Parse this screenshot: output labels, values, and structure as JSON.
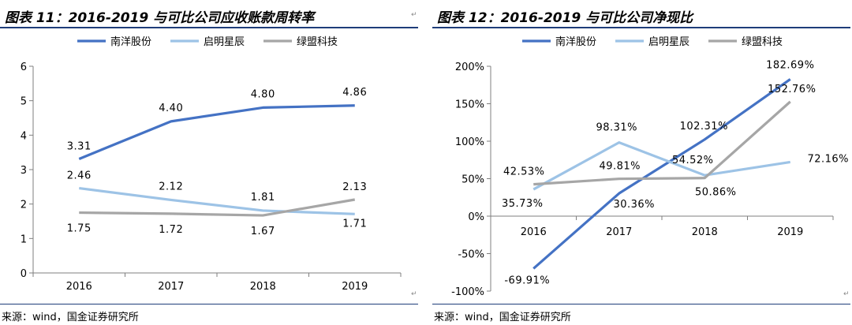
{
  "left": {
    "title": "图表 11：2016-2019 与可比公司应收账款周转率",
    "source": "来源：wind，国金证券研究所",
    "para_mark": "↵",
    "chart_data": {
      "type": "line",
      "categories": [
        "2016",
        "2017",
        "2018",
        "2019"
      ],
      "series": [
        {
          "name": "南洋股份",
          "color": "#4472c4",
          "values": [
            3.31,
            4.4,
            4.8,
            4.86
          ],
          "labels": [
            "3.31",
            "4.40",
            "4.80",
            "4.86"
          ]
        },
        {
          "name": "启明星辰",
          "color": "#9dc3e6",
          "values": [
            2.46,
            2.12,
            1.81,
            1.71
          ],
          "labels": [
            "2.46",
            "2.12",
            "1.81",
            "1.71"
          ]
        },
        {
          "name": "绿盟科技",
          "color": "#a6a6a6",
          "values": [
            1.75,
            1.72,
            1.67,
            2.13
          ],
          "labels": [
            "1.75",
            "1.72",
            "1.67",
            "2.13"
          ]
        }
      ],
      "ylim": [
        0,
        6
      ],
      "yticks": [
        0,
        1,
        2,
        3,
        4,
        5,
        6
      ],
      "ytick_labels": [
        "0",
        "1",
        "2",
        "3",
        "4",
        "5",
        "6"
      ],
      "grid": false,
      "legend": "top-center"
    }
  },
  "right": {
    "title": "图表 12：2016-2019 与可比公司净现比",
    "source": "来源：wind，国金证券研究所",
    "para_mark": "↵",
    "chart_data": {
      "type": "line",
      "categories": [
        "2016",
        "2017",
        "2018",
        "2019"
      ],
      "series": [
        {
          "name": "南洋股份",
          "color": "#4472c4",
          "values": [
            -69.91,
            30.36,
            102.31,
            182.69
          ],
          "labels": [
            "-69.91%",
            "30.36%",
            "102.31%",
            "182.69%"
          ]
        },
        {
          "name": "启明星辰",
          "color": "#9dc3e6",
          "values": [
            35.73,
            98.31,
            54.52,
            72.16
          ],
          "labels": [
            "35.73%",
            "98.31%",
            "54.52%",
            "72.16%"
          ]
        },
        {
          "name": "绿盟科技",
          "color": "#a6a6a6",
          "values": [
            42.53,
            49.81,
            50.86,
            152.76
          ],
          "labels": [
            "42.53%",
            "49.81%",
            "50.86%",
            "152.76%"
          ]
        }
      ],
      "ylim": [
        -100,
        200
      ],
      "yticks": [
        -100,
        -50,
        0,
        50,
        100,
        150,
        200
      ],
      "ytick_labels": [
        "-100%",
        "-50%",
        "0%",
        "50%",
        "100%",
        "150%",
        "200%"
      ],
      "grid": false,
      "legend": "top-center"
    }
  }
}
